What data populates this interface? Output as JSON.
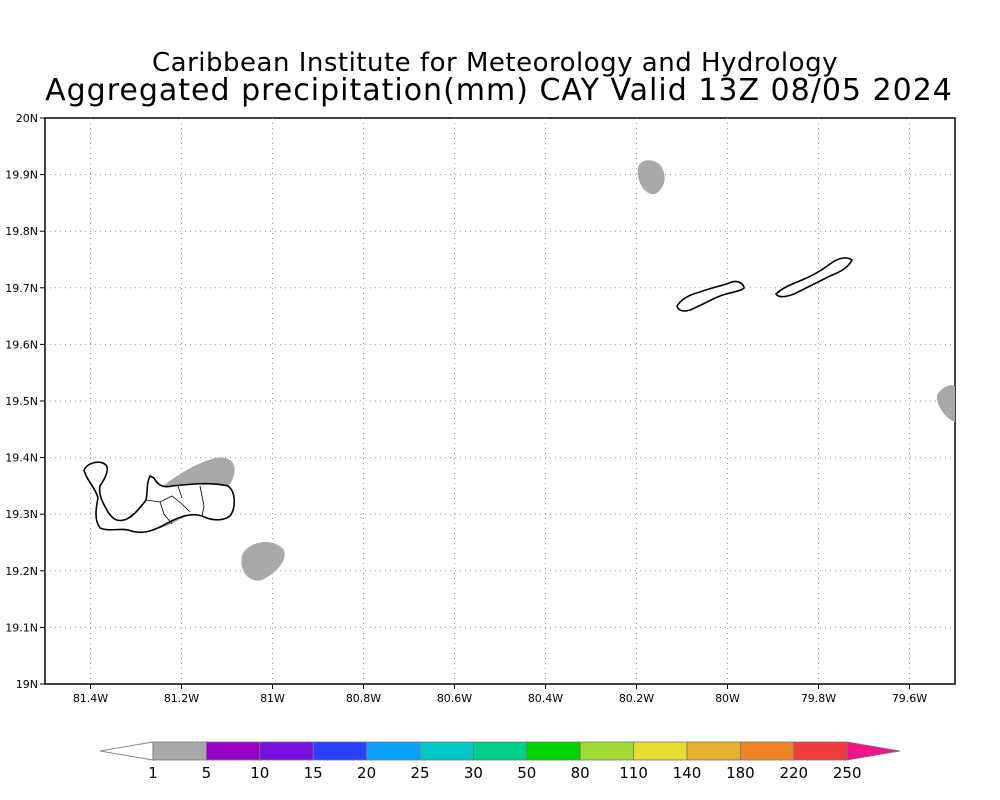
{
  "header": {
    "title": "Caribbean Institute for Meteorology and Hydrology",
    "subtitle": "Aggregated precipitation(mm) CAY Valid 13Z 08/05 2024"
  },
  "map": {
    "lon_range": [
      -81.5,
      -79.5
    ],
    "lat_range": [
      19.0,
      20.0
    ],
    "x_tick_labels": [
      "81.4W",
      "81.2W",
      "81W",
      "80.8W",
      "80.6W",
      "80.4W",
      "80.2W",
      "80W",
      "79.8W",
      "79.6W"
    ],
    "y_tick_labels": [
      "20N",
      "19.9N",
      "19.8N",
      "19.7N",
      "19.6N",
      "19.5N",
      "19.4N",
      "19.3N",
      "19.2N",
      "19.1N",
      "19N"
    ],
    "grid": "dotted",
    "land_outline": "Cayman Islands (Grand Cayman, Little Cayman, Cayman Brac)",
    "precip_color": "#a9a9a9"
  },
  "colorbar": {
    "labels": [
      "1",
      "5",
      "10",
      "15",
      "20",
      "25",
      "30",
      "50",
      "80",
      "110",
      "140",
      "180",
      "220",
      "250"
    ],
    "colors": [
      "#a9a9a9",
      "#9a00c8",
      "#7a10e0",
      "#2a40ff",
      "#0aa0ff",
      "#00c8c8",
      "#00d08a",
      "#00d200",
      "#a0dc32",
      "#e6dc32",
      "#e6af2d",
      "#f08228",
      "#f03c3c",
      "#f0148c"
    ],
    "under_color": "#ffffff"
  }
}
